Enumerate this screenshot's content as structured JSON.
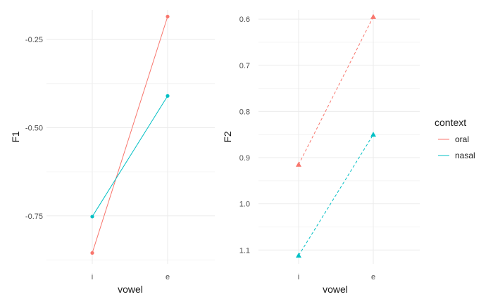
{
  "colors": {
    "oral": "#f8766d",
    "nasal": "#00bfc4",
    "grid_major": "#ebebeb",
    "grid_minor": "#f4f4f4"
  },
  "chart_data": [
    {
      "type": "line",
      "panel": "left",
      "title": "",
      "xlabel": "vowel",
      "ylabel": "F1",
      "categories": [
        "i",
        "e"
      ],
      "y_reversed": true,
      "ylim": [
        -0.886,
        -0.166
      ],
      "yticks": [
        "-0.75",
        "-0.50",
        "-0.25"
      ],
      "ytick_values": [
        -0.75,
        -0.5,
        -0.25
      ],
      "line_style": "solid",
      "marker": "circle",
      "series": [
        {
          "name": "oral",
          "values": [
            -0.855,
            -0.185
          ]
        },
        {
          "name": "nasal",
          "values": [
            -0.752,
            -0.41
          ]
        }
      ]
    },
    {
      "type": "line",
      "panel": "right",
      "title": "",
      "xlabel": "vowel",
      "ylabel": "F2",
      "categories": [
        "i",
        "e"
      ],
      "y_reversed": false,
      "ylim": [
        0.58,
        1.13
      ],
      "yticks": [
        "0.6",
        "0.7",
        "0.8",
        "0.9",
        "1.0",
        "1.1"
      ],
      "ytick_values": [
        0.6,
        0.7,
        0.8,
        0.9,
        1.0,
        1.1
      ],
      "line_style": "dashed",
      "marker": "triangle",
      "series": [
        {
          "name": "oral",
          "values": [
            0.915,
            0.595
          ]
        },
        {
          "name": "nasal",
          "values": [
            1.112,
            0.85
          ]
        }
      ]
    }
  ],
  "legend": {
    "title": "context",
    "items": [
      {
        "label": "oral"
      },
      {
        "label": "nasal"
      }
    ]
  }
}
